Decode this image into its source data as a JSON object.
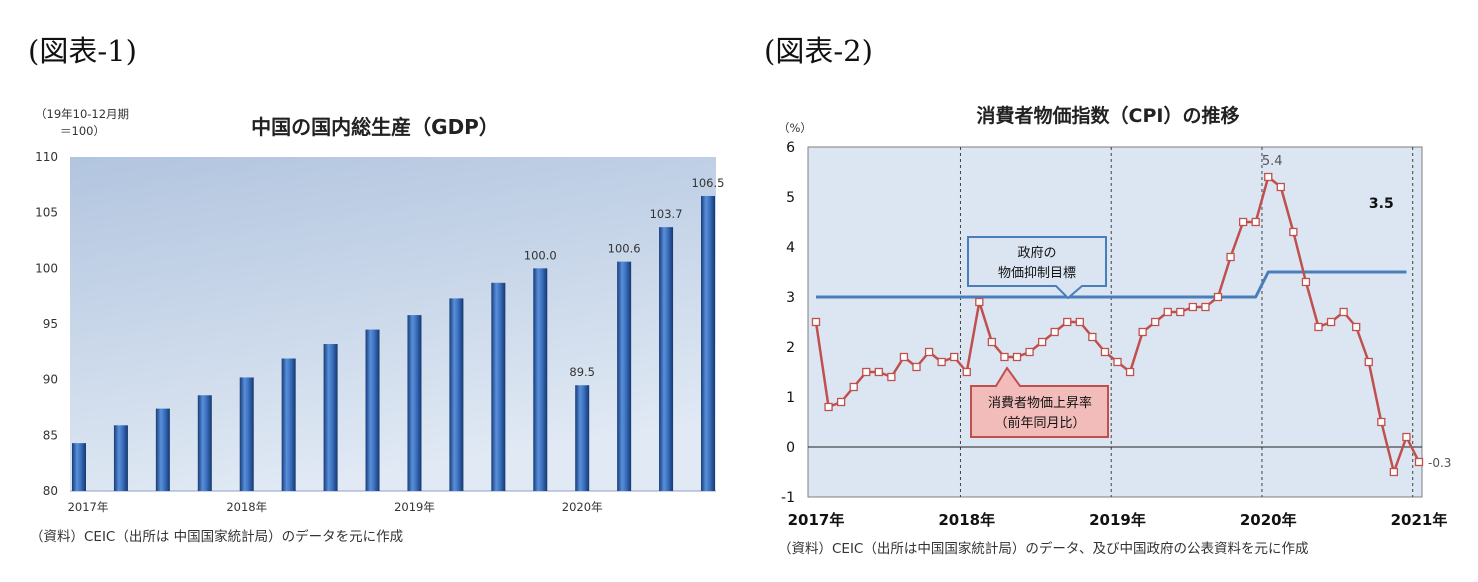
{
  "figure1": {
    "label": "(図表-1)",
    "source": "（資料）CEIC（出所は 中国国家統計局）のデータを元に作成"
  },
  "figure2": {
    "label": "(図表-2)",
    "source": "（資料）CEIC（出所は中国国家統計局）のデータ、及び中国政府の公表資料を元に作成"
  },
  "chart_data": [
    {
      "type": "bar",
      "title": "中国の国内総生産（GDP）",
      "ylabel_lines": [
        "（19年10-12月期",
        "＝100）"
      ],
      "ylim": [
        80,
        110
      ],
      "yticks": [
        80,
        85,
        90,
        95,
        100,
        105,
        110
      ],
      "values": [
        84.3,
        85.9,
        87.4,
        88.6,
        90.2,
        91.9,
        93.2,
        94.5,
        95.8,
        97.3,
        98.7,
        100.0,
        89.5,
        100.6,
        103.7,
        106.5
      ],
      "data_labels": [
        {
          "index": 11,
          "text": "100.0"
        },
        {
          "index": 12,
          "text": "89.5"
        },
        {
          "index": 13,
          "text": "100.6"
        },
        {
          "index": 14,
          "text": "103.7"
        },
        {
          "index": 15,
          "text": "106.5"
        }
      ],
      "xticks": [
        {
          "index": 0,
          "label": "2017年"
        },
        {
          "index": 4,
          "label": "2018年"
        },
        {
          "index": 8,
          "label": "2019年"
        },
        {
          "index": 12,
          "label": "2020年"
        }
      ],
      "grid": false,
      "legend": false,
      "colors": {
        "bar": "#2f64b3",
        "plot_background": "#c6d6ea"
      }
    },
    {
      "type": "line",
      "title": "消費者物価指数（CPI）の推移",
      "yunit": "（%）",
      "ylim": [
        -1,
        6
      ],
      "yticks": [
        -1,
        0,
        1,
        2,
        3,
        4,
        5,
        6
      ],
      "xticks": [
        {
          "x": "2017-01",
          "label": "2017年"
        },
        {
          "x": "2018-01",
          "label": "2018年"
        },
        {
          "x": "2019-01",
          "label": "2019年"
        },
        {
          "x": "2020-01",
          "label": "2020年"
        },
        {
          "x": "2021-01",
          "label": "2021年"
        }
      ],
      "year_dividers": true,
      "zero_line": true,
      "legend": false,
      "colors": {
        "plot_background": "#dce6f2"
      },
      "series": [
        {
          "name_lines": [
            "消費者物価上昇率",
            "（前年同月比）"
          ],
          "color": "#c0504d",
          "markers": true,
          "x": [
            "2017-01",
            "2017-02",
            "2017-03",
            "2017-04",
            "2017-05",
            "2017-06",
            "2017-07",
            "2017-08",
            "2017-09",
            "2017-10",
            "2017-11",
            "2017-12",
            "2018-01",
            "2018-02",
            "2018-03",
            "2018-04",
            "2018-05",
            "2018-06",
            "2018-07",
            "2018-08",
            "2018-09",
            "2018-10",
            "2018-11",
            "2018-12",
            "2019-01",
            "2019-02",
            "2019-03",
            "2019-04",
            "2019-05",
            "2019-06",
            "2019-07",
            "2019-08",
            "2019-09",
            "2019-10",
            "2019-11",
            "2019-12",
            "2020-01",
            "2020-02",
            "2020-03",
            "2020-04",
            "2020-05",
            "2020-06",
            "2020-07",
            "2020-08",
            "2020-09",
            "2020-10",
            "2020-11",
            "2020-12",
            "2021-01"
          ],
          "values": [
            2.5,
            0.8,
            0.9,
            1.2,
            1.5,
            1.5,
            1.4,
            1.8,
            1.6,
            1.9,
            1.7,
            1.8,
            1.5,
            2.9,
            2.1,
            1.8,
            1.8,
            1.9,
            2.1,
            2.3,
            2.5,
            2.5,
            2.2,
            1.9,
            1.7,
            1.5,
            2.3,
            2.5,
            2.7,
            2.7,
            2.8,
            2.8,
            3.0,
            3.8,
            4.5,
            4.5,
            5.4,
            5.2,
            4.3,
            3.3,
            2.4,
            2.5,
            2.7,
            2.4,
            1.7,
            0.5,
            -0.5,
            0.2,
            -0.3
          ],
          "data_labels": [
            {
              "x": "2020-01",
              "text": "5.4"
            },
            {
              "x": "2021-01",
              "text": "-0.3"
            }
          ]
        },
        {
          "name_lines": [
            "政府の",
            "物価抑制目標"
          ],
          "color": "#4a7ebb",
          "markers": false,
          "x": [
            "2017-01",
            "2019-12",
            "2020-01",
            "2020-12"
          ],
          "values": [
            3.0,
            3.0,
            3.5,
            3.5
          ],
          "data_labels": [
            {
              "x": "2020-10",
              "text": "3.5"
            }
          ]
        }
      ]
    }
  ]
}
